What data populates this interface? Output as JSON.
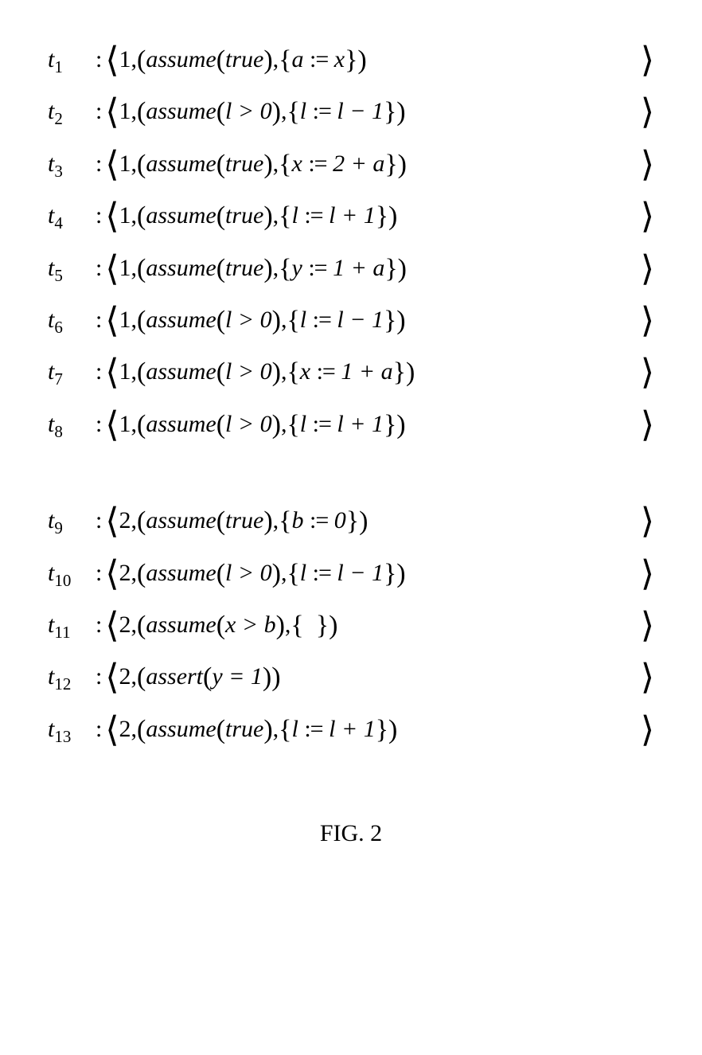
{
  "figure": {
    "caption": "FIG. 2",
    "fontsize_body": 30,
    "fontsize_caption": 30,
    "font_family": "Times New Roman",
    "text_color": "#000000",
    "bg_color": "#ffffff",
    "transitions": [
      {
        "label": "t",
        "sub": "1",
        "thread": "1",
        "guard_kw": "assume",
        "guard_arg": "true",
        "update_lhs": "a",
        "update_rhs": "x"
      },
      {
        "label": "t",
        "sub": "2",
        "thread": "1",
        "guard_kw": "assume",
        "guard_arg": "l > 0",
        "update_lhs": "l",
        "update_rhs": "l − 1"
      },
      {
        "label": "t",
        "sub": "3",
        "thread": "1",
        "guard_kw": "assume",
        "guard_arg": "true",
        "update_lhs": "x",
        "update_rhs": "2 + a"
      },
      {
        "label": "t",
        "sub": "4",
        "thread": "1",
        "guard_kw": "assume",
        "guard_arg": "true",
        "update_lhs": "l",
        "update_rhs": "l + 1"
      },
      {
        "label": "t",
        "sub": "5",
        "thread": "1",
        "guard_kw": "assume",
        "guard_arg": "true",
        "update_lhs": "y",
        "update_rhs": "1 + a"
      },
      {
        "label": "t",
        "sub": "6",
        "thread": "1",
        "guard_kw": "assume",
        "guard_arg": "l > 0",
        "update_lhs": "l",
        "update_rhs": "l − 1"
      },
      {
        "label": "t",
        "sub": "7",
        "thread": "1",
        "guard_kw": "assume",
        "guard_arg": "l > 0",
        "update_lhs": "x",
        "update_rhs": "1 + a"
      },
      {
        "label": "t",
        "sub": "8",
        "thread": "1",
        "guard_kw": "assume",
        "guard_arg": "l > 0",
        "update_lhs": "l",
        "update_rhs": "l + 1"
      },
      {
        "label": "t",
        "sub": "9",
        "thread": "2",
        "guard_kw": "assume",
        "guard_arg": "true",
        "update_lhs": "b",
        "update_rhs": "0"
      },
      {
        "label": "t",
        "sub": "10",
        "thread": "2",
        "guard_kw": "assume",
        "guard_arg": "l > 0",
        "update_lhs": "l",
        "update_rhs": "l − 1"
      },
      {
        "label": "t",
        "sub": "11",
        "thread": "2",
        "guard_kw": "assume",
        "guard_arg": "x > b",
        "update_lhs": "",
        "update_rhs": ""
      },
      {
        "label": "t",
        "sub": "12",
        "thread": "2",
        "guard_kw": "assert",
        "guard_arg": "y = 1",
        "update_lhs": null,
        "update_rhs": null
      },
      {
        "label": "t",
        "sub": "13",
        "thread": "2",
        "guard_kw": "assume",
        "guard_arg": "true",
        "update_lhs": "l",
        "update_rhs": "l + 1"
      }
    ],
    "group_break_after_index": 7
  }
}
